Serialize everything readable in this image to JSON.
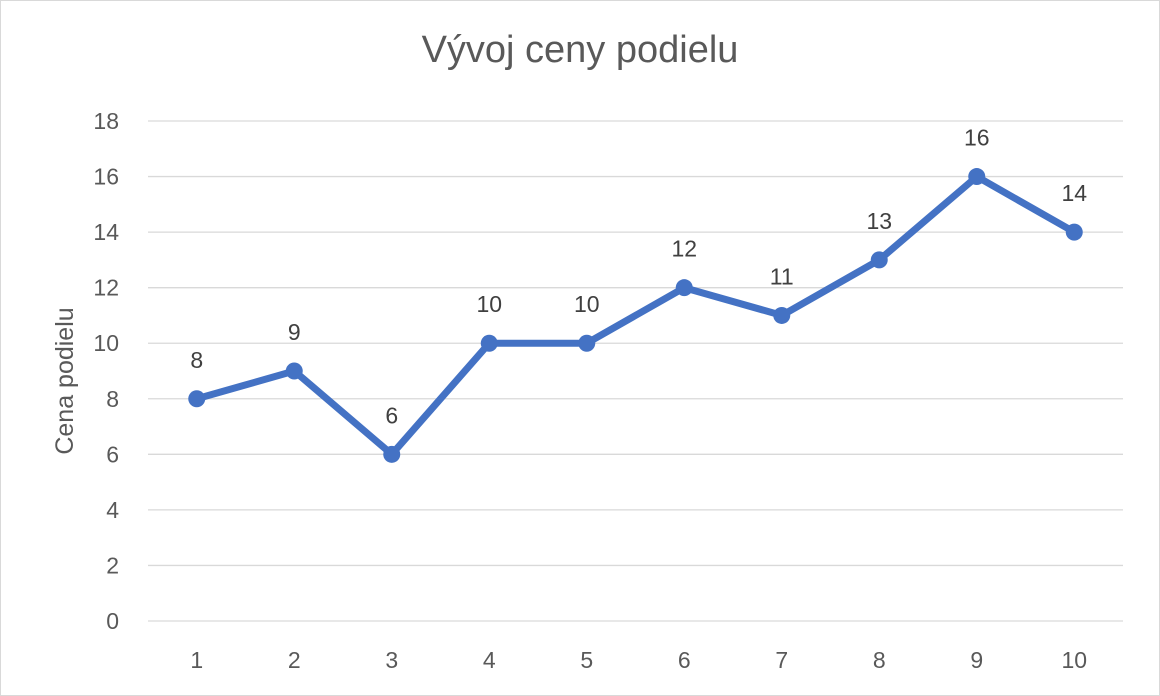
{
  "chart_data": {
    "type": "line",
    "title": "Vývoj ceny podielu",
    "xlabel": "",
    "ylabel": "Cena podielu",
    "categories": [
      "1",
      "2",
      "3",
      "4",
      "5",
      "6",
      "7",
      "8",
      "9",
      "10"
    ],
    "series": [
      {
        "values": [
          8,
          9,
          6,
          10,
          10,
          12,
          11,
          13,
          16,
          14
        ],
        "color": "#4472c4",
        "markers": true,
        "data_labels": true
      }
    ],
    "ylim": [
      0,
      18
    ],
    "yticks": [
      0,
      2,
      4,
      6,
      8,
      10,
      12,
      14,
      16,
      18
    ],
    "grid": true,
    "legend": "none",
    "gridline_color": "#d9d9d9"
  }
}
